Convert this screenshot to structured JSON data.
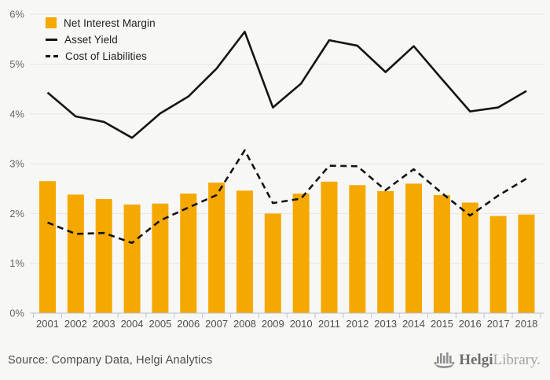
{
  "chart_data": {
    "type": "bar",
    "title": "",
    "categories": [
      "2001",
      "2002",
      "2003",
      "2004",
      "2005",
      "2006",
      "2007",
      "2008",
      "2009",
      "2010",
      "2011",
      "2012",
      "2013",
      "2014",
      "2015",
      "2016",
      "2017",
      "2018"
    ],
    "series": [
      {
        "name": "Net Interest Margin",
        "type": "bar",
        "style": "solid",
        "color": "#F5A800",
        "values": [
          2.65,
          2.38,
          2.29,
          2.18,
          2.2,
          2.4,
          2.62,
          2.46,
          2.0,
          2.4,
          2.64,
          2.57,
          2.45,
          2.6,
          2.37,
          2.22,
          1.95,
          1.98
        ]
      },
      {
        "name": "Asset Yield",
        "type": "line",
        "style": "solid",
        "color": "#141414",
        "values": [
          4.43,
          3.95,
          3.84,
          3.52,
          4.01,
          4.35,
          4.91,
          5.65,
          4.13,
          4.61,
          5.48,
          5.37,
          4.84,
          5.36,
          4.7,
          4.05,
          4.13,
          4.46
        ]
      },
      {
        "name": "Cost of Liabilities",
        "type": "line",
        "style": "dashed",
        "color": "#141414",
        "values": [
          1.82,
          1.59,
          1.61,
          1.41,
          1.86,
          2.12,
          2.37,
          3.27,
          2.21,
          2.3,
          2.96,
          2.95,
          2.47,
          2.89,
          2.41,
          1.96,
          2.36,
          2.7
        ]
      }
    ],
    "xlabel": "",
    "ylabel": "",
    "ylim": [
      0,
      6
    ],
    "y_ticks": [
      "0%",
      "1%",
      "2%",
      "3%",
      "4%",
      "5%",
      "6%"
    ],
    "grid": true,
    "legend_position": "top-left"
  },
  "style": {
    "background": "#f7f7f5",
    "gridline_color": "#e6e6e3",
    "axis_color": "#b7c2d2",
    "x_label_color": "#4d4d4d",
    "y_label_color": "#666666",
    "bar_color": "#F5A800"
  },
  "footer": {
    "source": "Source: Company Data, Helgi Analytics",
    "logo": {
      "icon": "helgi-ship-icon",
      "bold": "Helgi",
      "light": "Library."
    }
  }
}
